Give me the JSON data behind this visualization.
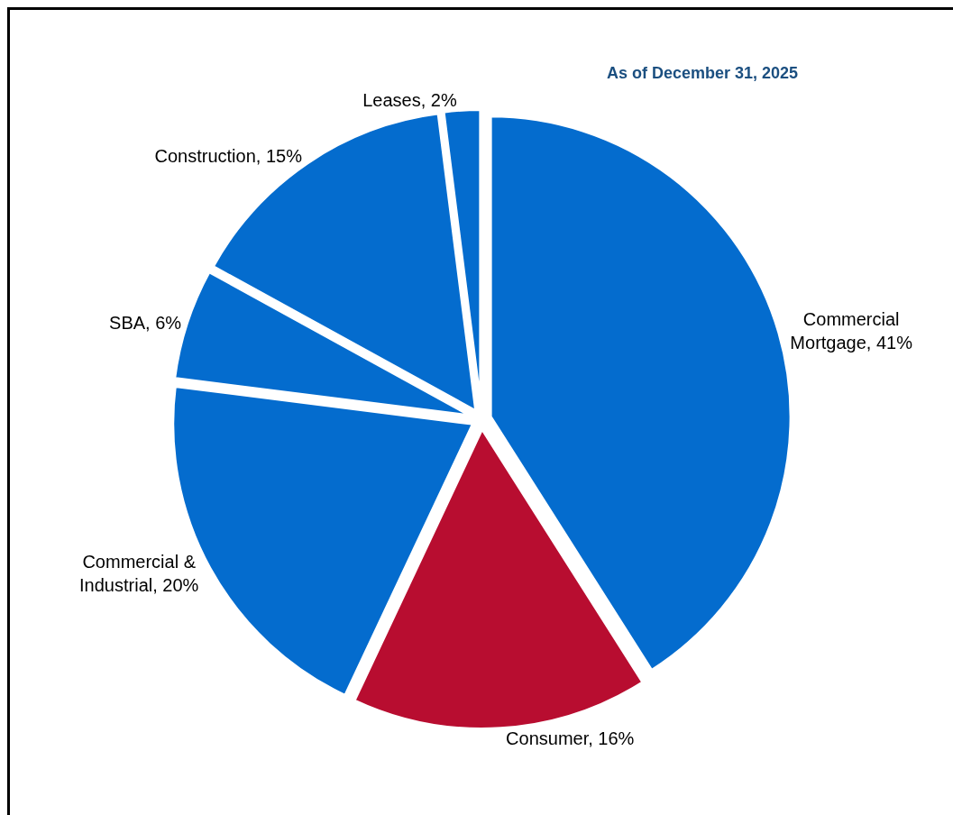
{
  "chart_data": {
    "type": "pie",
    "annotations": [
      "As of December 31, 2025"
    ],
    "categories": [
      "Commercial Mortgage",
      "Consumer",
      "Commercial & Industrial",
      "SBA",
      "Construction",
      "Leases"
    ],
    "values": [
      41,
      16,
      20,
      6,
      15,
      2
    ],
    "value_labels": [
      "41%",
      "16%",
      "20%",
      "6%",
      "15%",
      "2%"
    ],
    "colors": [
      "#046cce",
      "#b80d30",
      "#046cce",
      "#046cce",
      "#046cce",
      "#046cce"
    ],
    "legend": false
  }
}
